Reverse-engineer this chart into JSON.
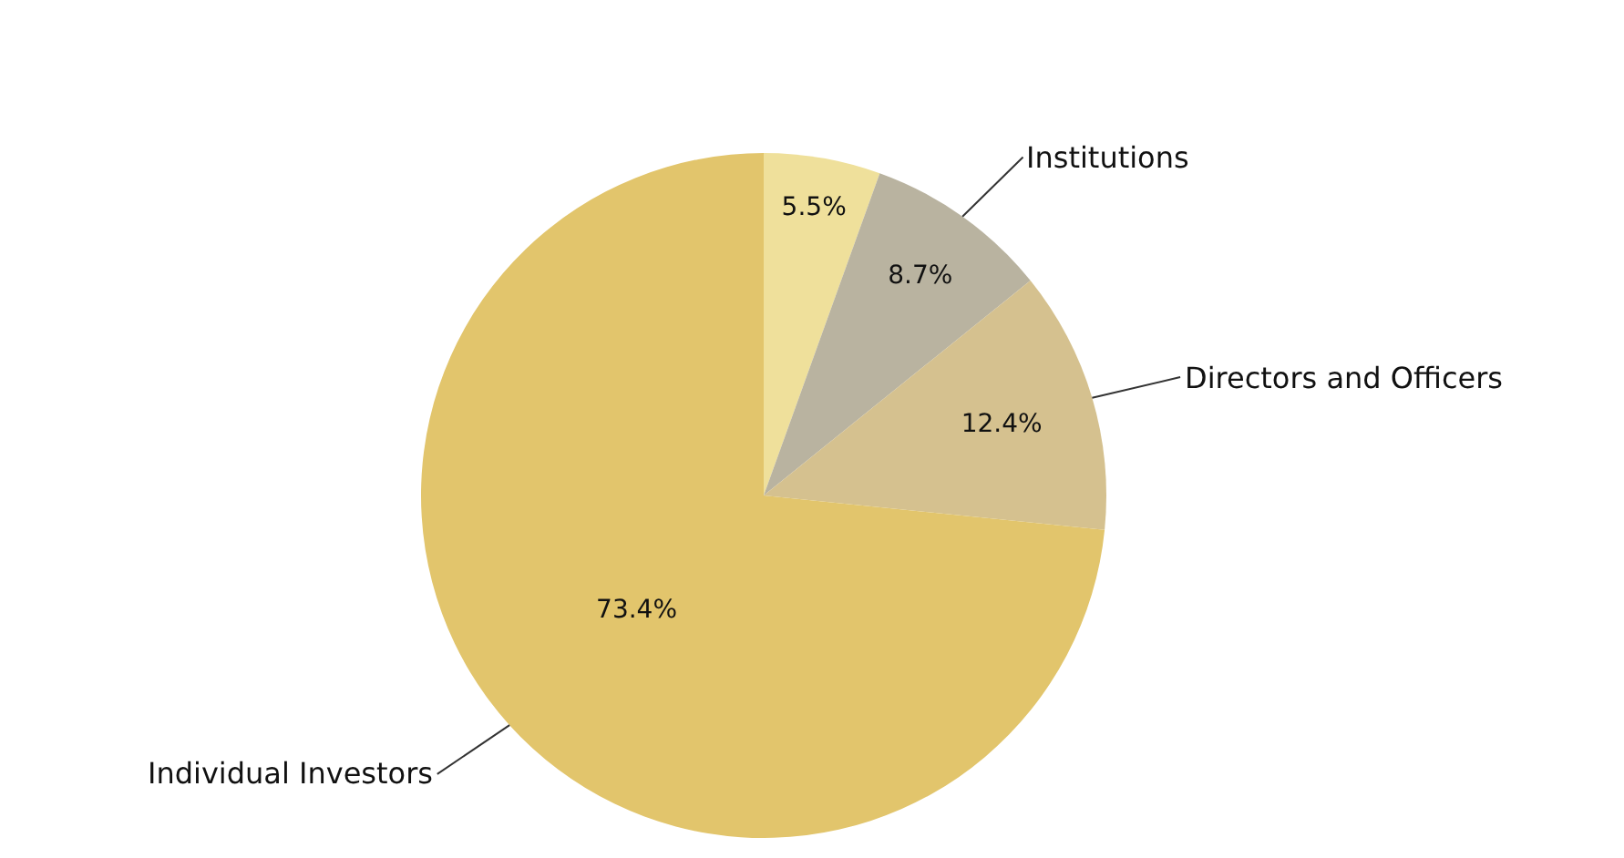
{
  "chart_data": {
    "type": "pie",
    "categories": [
      null,
      "Institutions",
      "Directors and Officers",
      "Individual Investors"
    ],
    "values": [
      5.5,
      8.7,
      12.4,
      73.4
    ],
    "value_labels": [
      "5.5%",
      "8.7%",
      "12.4%",
      "73.4%"
    ],
    "colors": [
      "#efe09b",
      "#b9b3a0",
      "#d5c18f",
      "#e2c56c"
    ],
    "legend": false
  }
}
